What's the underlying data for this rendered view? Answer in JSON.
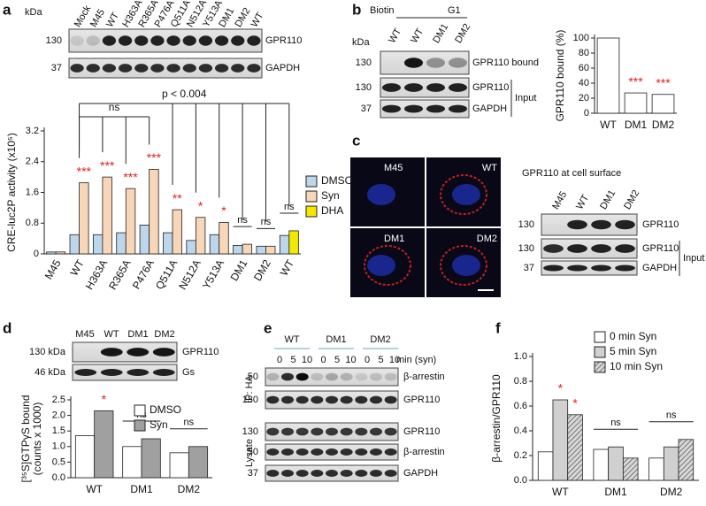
{
  "panels": {
    "a": {
      "letter": "a",
      "kda": "kDa",
      "lanes": [
        "Mock",
        "M45",
        "WT",
        "H363A",
        "R365A",
        "P476A",
        "Q511A",
        "N512A",
        "Y513A",
        "DM1",
        "DM2",
        "WT"
      ],
      "blots": [
        {
          "size": "130",
          "label": "GPR110"
        },
        {
          "size": "37",
          "label": "GAPDH"
        }
      ]
    },
    "b": {
      "letter": "b",
      "biotin": "Biotin",
      "g1": "G1",
      "kda": "kDa",
      "lanes": [
        "WT",
        "WT",
        "DM1",
        "DM2"
      ],
      "blots": [
        {
          "size": "130",
          "label": "GPR110 bound"
        },
        {
          "size": "130",
          "label": "GPR110"
        },
        {
          "size": "37",
          "label": "GAPDH"
        }
      ],
      "input": "Input"
    },
    "c": {
      "letter": "c",
      "images": [
        "M45",
        "WT",
        "DM1",
        "DM2"
      ],
      "title": "GPR110 at cell surface",
      "lanes": [
        "M45",
        "WT",
        "DM1",
        "DM2"
      ],
      "blots": [
        {
          "size": "130",
          "label": "GPR110"
        },
        {
          "size": "130",
          "label": "GPR110"
        },
        {
          "size": "37",
          "label": "GAPDH"
        }
      ],
      "input": "Input"
    },
    "d": {
      "letter": "d",
      "lanes": [
        "M45",
        "WT",
        "DM1",
        "DM2"
      ],
      "blots": [
        {
          "size": "130 kDa",
          "label": "GPR110"
        },
        {
          "size": "46 kDa",
          "label": "Gs"
        }
      ]
    },
    "e": {
      "letter": "e",
      "groups": [
        "WT",
        "DM1",
        "DM2"
      ],
      "times": [
        "0",
        "5",
        "10",
        "0",
        "5",
        "10",
        "0",
        "5",
        "10"
      ],
      "time_unit": "min (syn)",
      "blots": [
        {
          "size": "50",
          "label": "β-arrestin"
        },
        {
          "size": "130",
          "label": "GPR110"
        },
        {
          "size": "130",
          "label": "GPR110"
        },
        {
          "size": "50",
          "label": "β-arrestin"
        },
        {
          "size": "37",
          "label": "GAPDH"
        }
      ],
      "ip": "IP: HA",
      "lysate": "Lysate"
    },
    "f": {
      "letter": "f"
    }
  },
  "chart_data": [
    {
      "type": "bar",
      "y_label": [
        "CRE-luc2P activity (x10⁵)"
      ],
      "categories": [
        "M45",
        "WT",
        "H363A",
        "R365A",
        "P476A",
        "Q511A",
        "N512A",
        "Y513A",
        "DM1",
        "DM2",
        "WT"
      ],
      "series": [
        {
          "name": "DMSO",
          "color": "#bcd6ec",
          "values": [
            0.05,
            0.5,
            0.5,
            0.55,
            0.75,
            0.55,
            0.35,
            0.5,
            0.22,
            0.2,
            0.48
          ]
        },
        {
          "name": "Syn",
          "color": "#f8d6b8",
          "values": [
            0.05,
            1.85,
            2.0,
            1.7,
            2.2,
            1.15,
            0.95,
            0.82,
            0.25,
            0.2,
            null
          ],
          "significance": [
            null,
            "***",
            "***",
            "***",
            "***",
            "**",
            "*",
            "*",
            null,
            null,
            null
          ]
        },
        {
          "name": "DHA",
          "color": "#f2e800",
          "values": [
            null,
            null,
            null,
            null,
            null,
            null,
            null,
            null,
            null,
            null,
            0.6
          ]
        }
      ],
      "group_annotations": [
        null,
        null,
        null,
        null,
        null,
        null,
        null,
        null,
        "ns",
        "ns",
        "ns"
      ],
      "annotations": [
        "p < 0.004",
        "ns"
      ],
      "ylim": [
        0,
        3.2
      ],
      "yticks": [
        0,
        0.8,
        1.6,
        2.4,
        3.2
      ]
    },
    {
      "type": "bar",
      "y_label": [
        "GPR110 bound (%)"
      ],
      "categories": [
        "WT",
        "DM1",
        "DM2"
      ],
      "values": [
        100,
        27,
        25
      ],
      "color": "#ffffff",
      "significance": [
        null,
        "***",
        "***"
      ],
      "ylim": [
        0,
        100
      ],
      "yticks": [
        0,
        20,
        40,
        60,
        80,
        100
      ]
    },
    {
      "type": "bar",
      "y_label": [
        "[³⁵S]GTPγS bound",
        "(counts x 1000)"
      ],
      "categories": [
        "WT",
        "DM1",
        "DM2"
      ],
      "series": [
        {
          "name": "DMSO",
          "color": "#ffffff",
          "values": [
            1.35,
            1.0,
            0.8
          ]
        },
        {
          "name": "Syn",
          "color": "#a0a0a0",
          "values": [
            2.15,
            1.25,
            1.0
          ],
          "significance": [
            "*",
            null,
            null
          ]
        }
      ],
      "group_annotations": [
        null,
        "ns",
        "ns"
      ],
      "ylim": [
        0,
        2.5
      ],
      "yticks": [
        {
          "value": 0,
          "label": "0.0"
        },
        0.5,
        {
          "value": 1,
          "label": "1.0"
        },
        1.5,
        {
          "value": 2,
          "label": "2.0"
        },
        2.5
      ]
    },
    {
      "type": "bar",
      "y_label": [
        "β-arrestin/GPR110"
      ],
      "categories": [
        "WT",
        "DM1",
        "DM2"
      ],
      "series": [
        {
          "name": "0 min Syn",
          "color": "#ffffff",
          "values": [
            0.23,
            0.25,
            0.18
          ]
        },
        {
          "name": "5 min Syn",
          "color": "#d0d0d0",
          "values": [
            0.65,
            0.27,
            0.27
          ],
          "significance": [
            "*",
            null,
            null
          ]
        },
        {
          "name": "10 min Syn",
          "color": "#888888",
          "hatch": true,
          "values": [
            0.53,
            0.18,
            0.33
          ],
          "significance": [
            "*",
            null,
            null
          ]
        }
      ],
      "group_annotations": [
        null,
        "ns",
        "ns"
      ],
      "ylim": [
        0,
        1.0
      ],
      "yticks": [
        {
          "value": 0,
          "label": "0.0"
        },
        0.2,
        0.4,
        0.6,
        0.8,
        {
          "value": 1,
          "label": "1.0"
        }
      ]
    }
  ]
}
